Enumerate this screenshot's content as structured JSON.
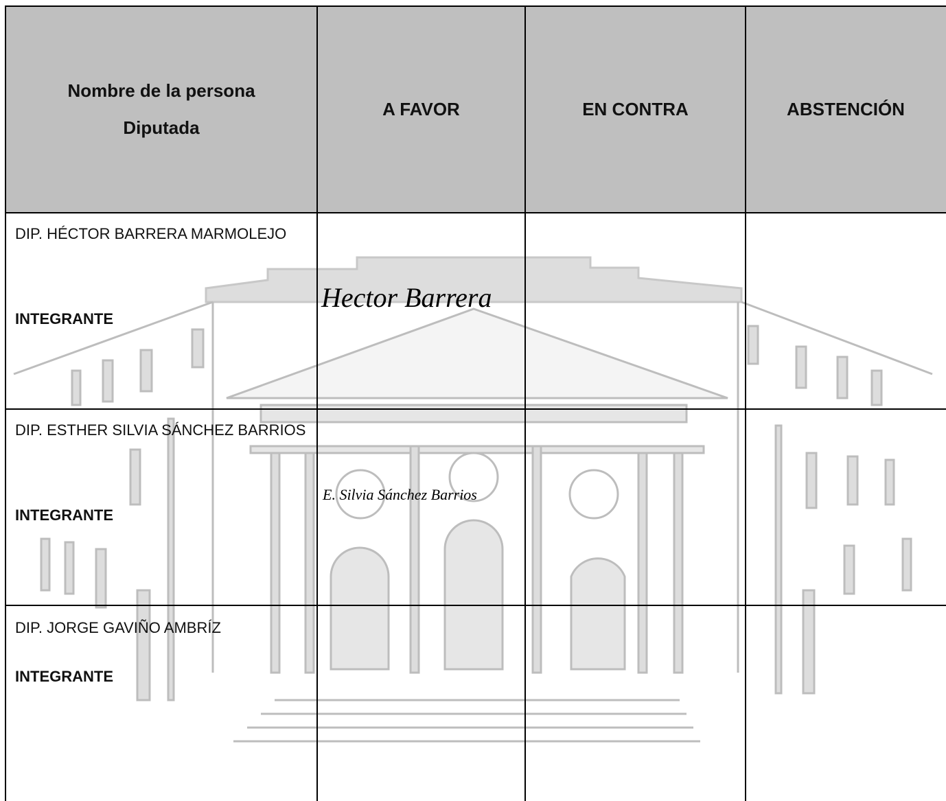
{
  "table": {
    "headers": [
      "Nombre de la persona Diputada",
      "A FAVOR",
      "EN CONTRA",
      "ABSTENCIÓN"
    ],
    "rows": [
      {
        "name": "DIP. HÉCTOR BARRERA MARMOLEJO",
        "role": "INTEGRANTE",
        "signature": "Hector Barrera"
      },
      {
        "name": "DIP. ESTHER SILVIA SÁNCHEZ BARRIOS",
        "role": "INTEGRANTE",
        "signature": "E. Silvia Sánchez Barrios"
      },
      {
        "name": "DIP. JORGE GAVIÑO AMBRÍZ",
        "role": "INTEGRANTE"
      }
    ]
  }
}
